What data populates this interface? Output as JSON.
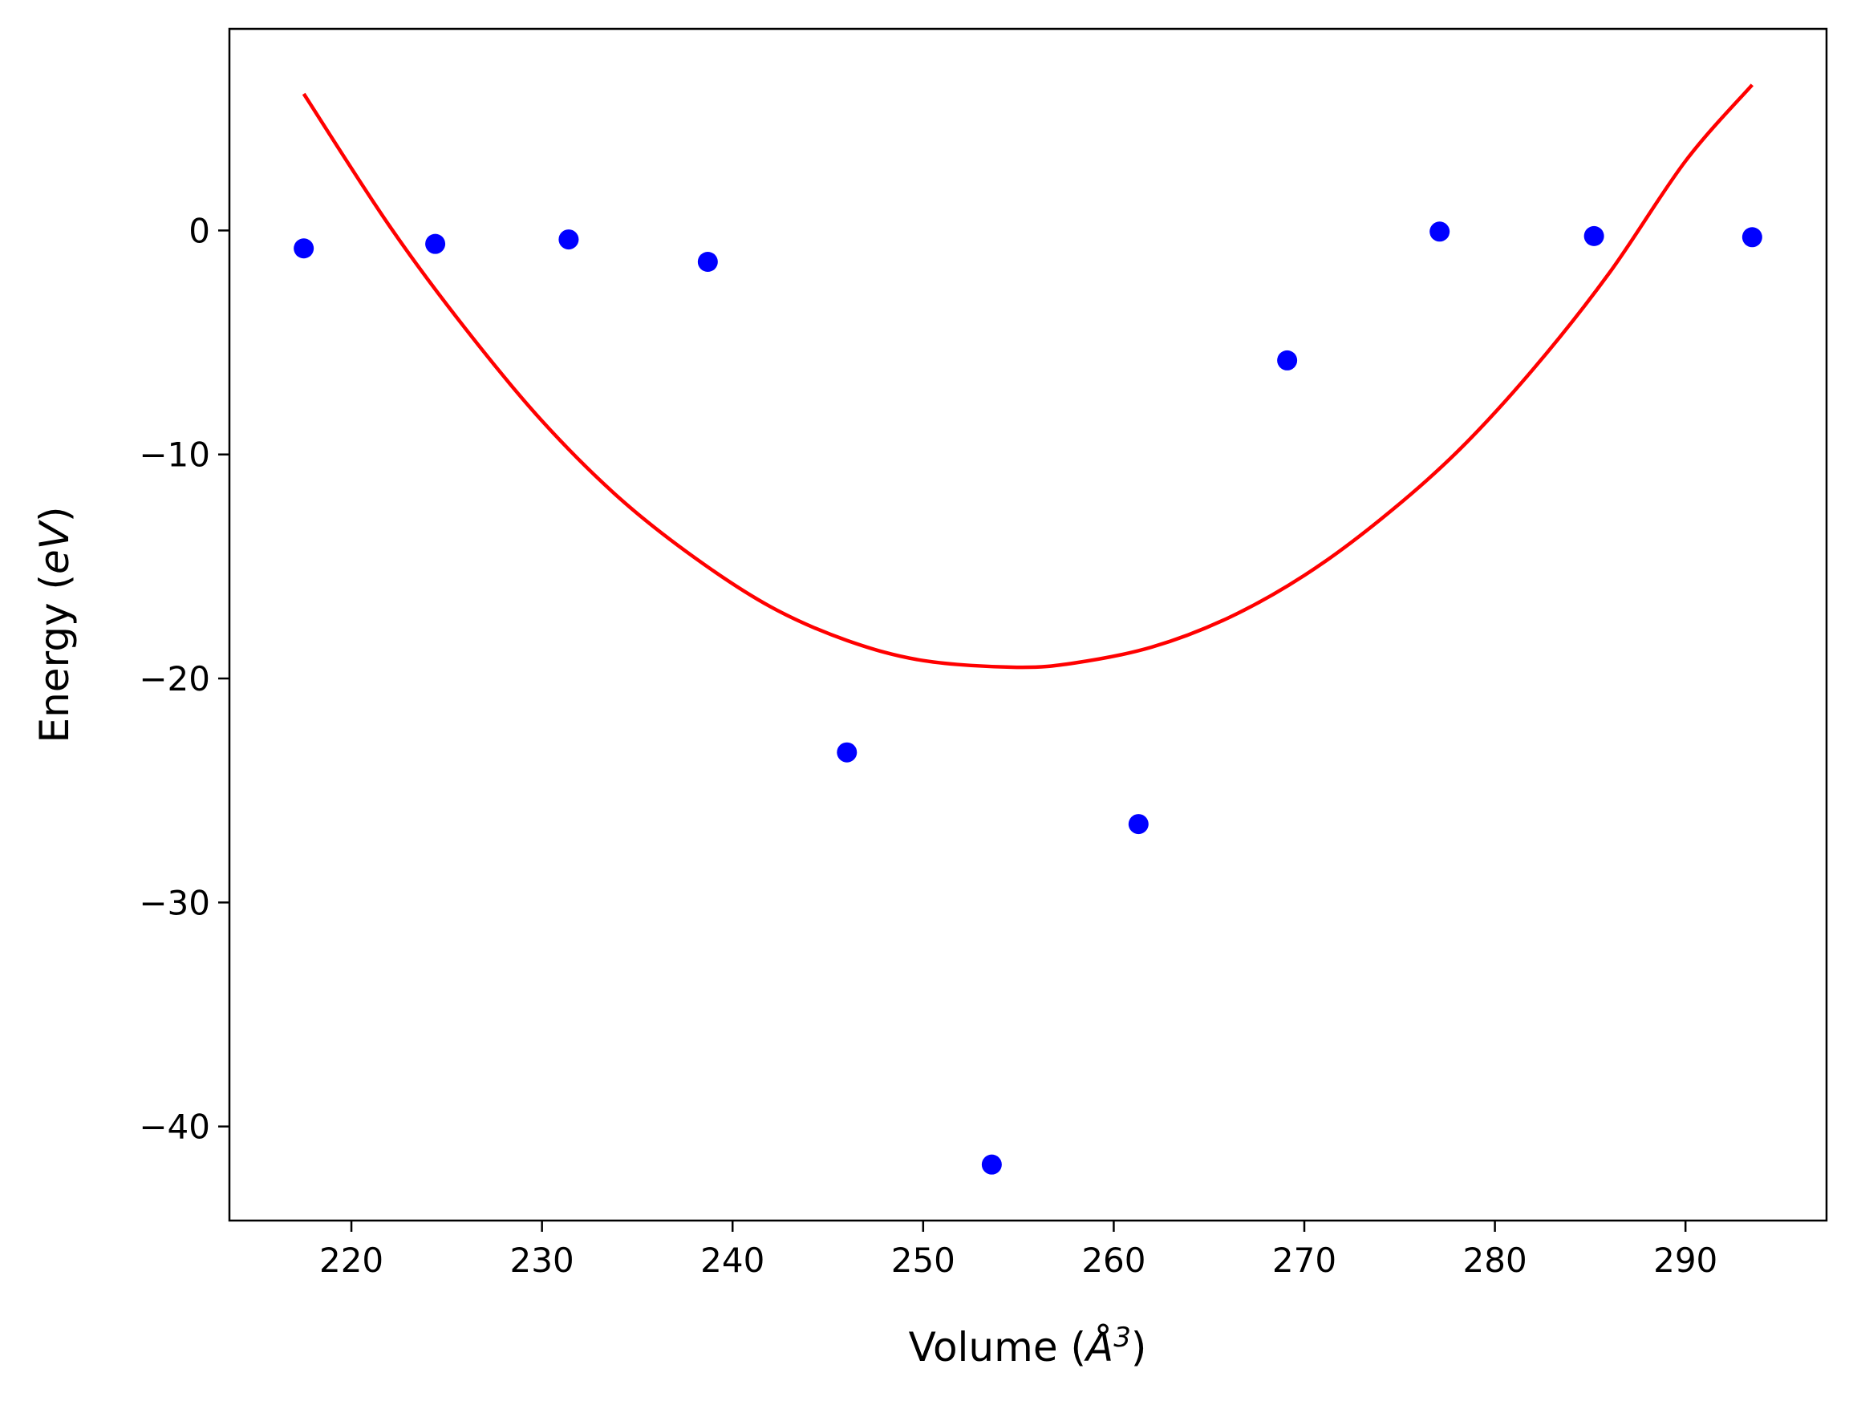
{
  "chart_data": {
    "type": "scatter",
    "title": "",
    "xlabel_main": "Volume (",
    "xlabel_unit": "Å",
    "xlabel_exp": "3",
    "xlabel_close": ")",
    "ylabel_main": "Energy (",
    "ylabel_unit": "eV",
    "ylabel_close": ")",
    "xlim": [
      213.6,
      297.4
    ],
    "ylim": [
      -44.2,
      9.0
    ],
    "grid": false,
    "x_ticks": [
      220,
      230,
      240,
      250,
      260,
      270,
      280,
      290
    ],
    "x_tick_labels": [
      "220",
      "230",
      "240",
      "250",
      "260",
      "270",
      "280",
      "290"
    ],
    "y_ticks": [
      0,
      -10,
      -20,
      -30,
      -40
    ],
    "y_tick_labels": [
      "0",
      "−10",
      "−20",
      "−30",
      "−40"
    ],
    "series": [
      {
        "kind": "points",
        "color": "#0000ff",
        "x": [
          217.5,
          224.4,
          231.4,
          238.7,
          246.0,
          253.6,
          261.3,
          269.1,
          277.1,
          285.2,
          293.5
        ],
        "y": [
          -0.8,
          -0.6,
          -0.4,
          -1.4,
          -23.3,
          -41.7,
          -26.5,
          -5.8,
          -0.05,
          -0.25,
          -0.3
        ]
      },
      {
        "kind": "fit-curve",
        "color": "#ff0000",
        "x": [
          217.5,
          222.0,
          226.0,
          230.0,
          234.0,
          238.0,
          242.0,
          246.0,
          250.0,
          254.9,
          258.0,
          262.0,
          266.0,
          270.0,
          274.0,
          278.0,
          282.0,
          286.0,
          290.0,
          293.5
        ],
        "y": [
          6.1,
          0.2,
          -4.4,
          -8.5,
          -11.9,
          -14.6,
          -16.8,
          -18.3,
          -19.2,
          -19.5,
          -19.3,
          -18.6,
          -17.3,
          -15.4,
          -12.9,
          -9.9,
          -6.2,
          -1.9,
          3.1,
          6.5
        ]
      }
    ]
  }
}
